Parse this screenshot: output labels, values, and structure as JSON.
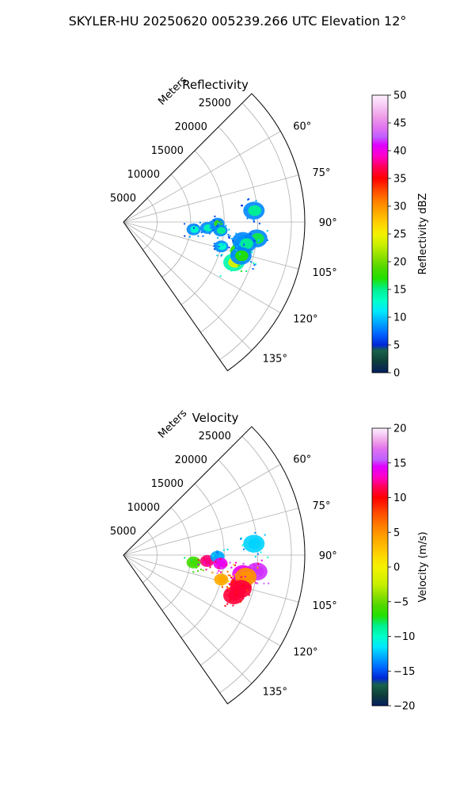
{
  "figure": {
    "suptitle": "SKYLER-HU  20250620  005239.266 UTC Elevation 12°"
  },
  "chart_data": [
    {
      "type": "heatmap",
      "subtype": "polar-sector-ppi",
      "title": "Reflectivity",
      "radial_label": "Meters",
      "r_ticks": [
        5000,
        10000,
        15000,
        20000,
        25000
      ],
      "r_tick_labels": [
        "5000",
        "10000",
        "15000",
        "20000",
        "25000"
      ],
      "rmax": 27000,
      "theta_min_deg": 45,
      "theta_max_deg": 145,
      "angle_ticks": [
        60,
        75,
        90,
        105,
        120,
        135
      ],
      "angle_tick_labels": [
        "60°",
        "75°",
        "90°",
        "105°",
        "120°",
        "135°"
      ],
      "grid": true,
      "colorbar": {
        "label": "Reflectivity dBZ",
        "min": 0,
        "max": 50,
        "ticks": [
          0,
          5,
          10,
          15,
          20,
          25,
          30,
          35,
          40,
          45,
          50
        ],
        "tick_labels": [
          "0",
          "5",
          "10",
          "15",
          "20",
          "25",
          "30",
          "35",
          "40",
          "45",
          "50"
        ],
        "stops": [
          [
            0,
            "#051c5e"
          ],
          [
            2,
            "#0e3e3a"
          ],
          [
            4,
            "#18624a"
          ],
          [
            5,
            "#0026d8"
          ],
          [
            7,
            "#0066ff"
          ],
          [
            9,
            "#00a8ff"
          ],
          [
            11,
            "#00e8ff"
          ],
          [
            13,
            "#00ffc8"
          ],
          [
            15,
            "#00f090"
          ],
          [
            17,
            "#22e000"
          ],
          [
            19,
            "#52d800"
          ],
          [
            21,
            "#90e000"
          ],
          [
            23,
            "#c8f000"
          ],
          [
            25,
            "#f4f200"
          ],
          [
            27,
            "#ffd000"
          ],
          [
            29,
            "#ffa800"
          ],
          [
            31,
            "#ff7c00"
          ],
          [
            33,
            "#ff4400"
          ],
          [
            35,
            "#ff0000"
          ],
          [
            37,
            "#ff0055"
          ],
          [
            39,
            "#ff00c8"
          ],
          [
            41,
            "#e000ff"
          ],
          [
            42.5,
            "#c060ff"
          ],
          [
            44,
            "#e070f0"
          ],
          [
            46,
            "#ee9ce8"
          ],
          [
            48,
            "#f6c8f4"
          ],
          [
            50,
            "#fff0ff"
          ]
        ]
      },
      "echoes": [
        {
          "range_m": 18000,
          "az_deg": 104,
          "value": 27
        },
        {
          "range_m": 17500,
          "az_deg": 110,
          "value": 24
        },
        {
          "range_m": 20000,
          "az_deg": 97,
          "value": 16
        },
        {
          "range_m": 18000,
          "az_deg": 99,
          "value": 14
        },
        {
          "range_m": 10500,
          "az_deg": 96,
          "value": 13
        },
        {
          "range_m": 12500,
          "az_deg": 94,
          "value": 14
        },
        {
          "range_m": 15000,
          "az_deg": 104,
          "value": 13
        },
        {
          "range_m": 18500,
          "az_deg": 100,
          "value": 15
        },
        {
          "range_m": 14000,
          "az_deg": 91,
          "value": 18
        },
        {
          "range_m": 14500,
          "az_deg": 95,
          "value": 15
        },
        {
          "range_m": 18200,
          "az_deg": 106,
          "value": 17
        },
        {
          "range_m": 19500,
          "az_deg": 85,
          "value": 15
        }
      ]
    },
    {
      "type": "heatmap",
      "subtype": "polar-sector-ppi",
      "title": "Velocity",
      "radial_label": "Meters",
      "r_ticks": [
        5000,
        10000,
        15000,
        20000,
        25000
      ],
      "r_tick_labels": [
        "5000",
        "10000",
        "15000",
        "20000",
        "25000"
      ],
      "rmax": 27000,
      "theta_min_deg": 45,
      "theta_max_deg": 145,
      "angle_ticks": [
        60,
        75,
        90,
        105,
        120,
        135
      ],
      "angle_tick_labels": [
        "60°",
        "75°",
        "90°",
        "105°",
        "120°",
        "135°"
      ],
      "grid": true,
      "colorbar": {
        "label": "Velocity (m/s)",
        "min": -20,
        "max": 20,
        "ticks": [
          -20,
          -15,
          -10,
          -5,
          0,
          5,
          10,
          15,
          20
        ],
        "tick_labels": [
          "−20",
          "−15",
          "−10",
          "−5",
          "0",
          "5",
          "10",
          "15",
          "20"
        ],
        "stops": [
          [
            -20,
            "#051c5e"
          ],
          [
            -18.5,
            "#0e3e3a"
          ],
          [
            -17,
            "#18624a"
          ],
          [
            -16,
            "#0026d8"
          ],
          [
            -14.5,
            "#0066ff"
          ],
          [
            -13,
            "#00a8ff"
          ],
          [
            -11.5,
            "#00e8ff"
          ],
          [
            -10,
            "#00ffc8"
          ],
          [
            -8.5,
            "#00f090"
          ],
          [
            -7,
            "#22e000"
          ],
          [
            -5.5,
            "#52d800"
          ],
          [
            -4,
            "#90e000"
          ],
          [
            -2.5,
            "#c8f000"
          ],
          [
            0,
            "#f4f200"
          ],
          [
            2,
            "#ffd000"
          ],
          [
            4,
            "#ffa800"
          ],
          [
            6,
            "#ff7c00"
          ],
          [
            8,
            "#ff4400"
          ],
          [
            10,
            "#ff0000"
          ],
          [
            11.5,
            "#ff0055"
          ],
          [
            13,
            "#ff00c8"
          ],
          [
            14.5,
            "#e000ff"
          ],
          [
            15.5,
            "#c060ff"
          ],
          [
            17,
            "#e070f0"
          ],
          [
            18,
            "#ee9ce8"
          ],
          [
            19,
            "#f6c8f4"
          ],
          [
            20,
            "#fff0ff"
          ]
        ]
      },
      "echoes": [
        {
          "range_m": 18000,
          "az_deg": 104,
          "value": 10
        },
        {
          "range_m": 17500,
          "az_deg": 110,
          "value": 11
        },
        {
          "range_m": 20000,
          "az_deg": 97,
          "value": 15
        },
        {
          "range_m": 18000,
          "az_deg": 99,
          "value": 14
        },
        {
          "range_m": 10500,
          "az_deg": 96,
          "value": -6
        },
        {
          "range_m": 12500,
          "az_deg": 94,
          "value": 12
        },
        {
          "range_m": 15000,
          "az_deg": 104,
          "value": 4
        },
        {
          "range_m": 18500,
          "az_deg": 100,
          "value": 5
        },
        {
          "range_m": 14000,
          "az_deg": 91,
          "value": -13
        },
        {
          "range_m": 14500,
          "az_deg": 95,
          "value": 14
        },
        {
          "range_m": 18200,
          "az_deg": 106,
          "value": 11
        },
        {
          "range_m": 19500,
          "az_deg": 85,
          "value": -12
        }
      ]
    }
  ]
}
